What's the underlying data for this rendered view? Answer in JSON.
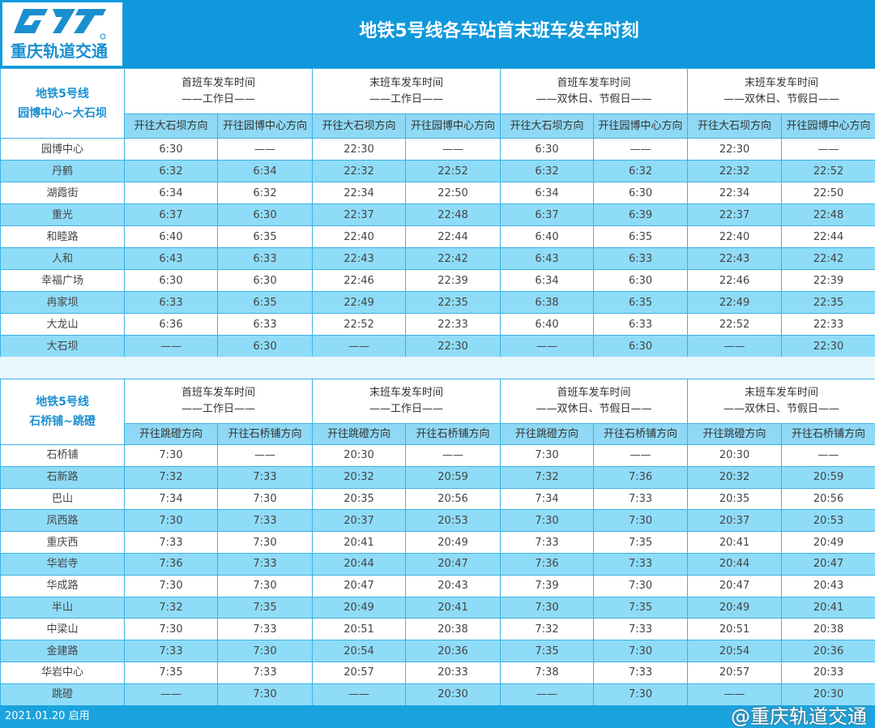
{
  "header": {
    "logo_text": "重庆轨道交通",
    "title": "地铁5号线各车站首末班车发车时刻"
  },
  "groups": [
    {
      "title": "首班车发车时间",
      "sub": "——工作日——"
    },
    {
      "title": "末班车发车时间",
      "sub": "——工作日——"
    },
    {
      "title": "首班车发车时间",
      "sub": "——双休日、节假日——"
    },
    {
      "title": "末班车发车时间",
      "sub": "——双休日、节假日——"
    }
  ],
  "sections": [
    {
      "line": "地铁5号线",
      "route": "园博中心~大石坝",
      "directions": [
        "开往大石坝方向",
        "开往园博中心方向"
      ],
      "rows": [
        [
          "园博中心",
          "6:30",
          "——",
          "22:30",
          "——",
          "6:30",
          "——",
          "22:30",
          "——"
        ],
        [
          "丹鹤",
          "6:32",
          "6:34",
          "22:32",
          "22:52",
          "6:32",
          "6:32",
          "22:32",
          "22:52"
        ],
        [
          "湖霞街",
          "6:34",
          "6:32",
          "22:34",
          "22:50",
          "6:34",
          "6:30",
          "22:34",
          "22:50"
        ],
        [
          "重光",
          "6:37",
          "6:30",
          "22:37",
          "22:48",
          "6:37",
          "6:39",
          "22:37",
          "22:48"
        ],
        [
          "和睦路",
          "6:40",
          "6:35",
          "22:40",
          "22:44",
          "6:40",
          "6:35",
          "22:40",
          "22:44"
        ],
        [
          "人和",
          "6:43",
          "6:33",
          "22:43",
          "22:42",
          "6:43",
          "6:33",
          "22:43",
          "22:42"
        ],
        [
          "幸福广场",
          "6:30",
          "6:30",
          "22:46",
          "22:39",
          "6:34",
          "6:30",
          "22:46",
          "22:39"
        ],
        [
          "冉家坝",
          "6:33",
          "6:35",
          "22:49",
          "22:35",
          "6:38",
          "6:35",
          "22:49",
          "22:35"
        ],
        [
          "大龙山",
          "6:36",
          "6:33",
          "22:52",
          "22:33",
          "6:40",
          "6:33",
          "22:52",
          "22:33"
        ],
        [
          "大石坝",
          "——",
          "6:30",
          "——",
          "22:30",
          "——",
          "6:30",
          "——",
          "22:30"
        ]
      ]
    },
    {
      "line": "地铁5号线",
      "route": "石桥铺~跳磴",
      "directions": [
        "开往跳磴方向",
        "开往石桥铺方向"
      ],
      "rows": [
        [
          "石桥铺",
          "7:30",
          "——",
          "20:30",
          "——",
          "7:30",
          "——",
          "20:30",
          "——"
        ],
        [
          "石新路",
          "7:32",
          "7:33",
          "20:32",
          "20:59",
          "7:32",
          "7:36",
          "20:32",
          "20:59"
        ],
        [
          "巴山",
          "7:34",
          "7:30",
          "20:35",
          "20:56",
          "7:34",
          "7:33",
          "20:35",
          "20:56"
        ],
        [
          "凤西路",
          "7:30",
          "7:33",
          "20:37",
          "20:53",
          "7:30",
          "7:30",
          "20:37",
          "20:53"
        ],
        [
          "重庆西",
          "7:33",
          "7:30",
          "20:41",
          "20:49",
          "7:33",
          "7:35",
          "20:41",
          "20:49"
        ],
        [
          "华岩寺",
          "7:36",
          "7:33",
          "20:44",
          "20:47",
          "7:36",
          "7:33",
          "20:44",
          "20:47"
        ],
        [
          "华成路",
          "7:30",
          "7:30",
          "20:47",
          "20:43",
          "7:39",
          "7:30",
          "20:47",
          "20:43"
        ],
        [
          "半山",
          "7:32",
          "7:35",
          "20:49",
          "20:41",
          "7:30",
          "7:35",
          "20:49",
          "20:41"
        ],
        [
          "中梁山",
          "7:30",
          "7:33",
          "20:51",
          "20:38",
          "7:32",
          "7:33",
          "20:51",
          "20:38"
        ],
        [
          "金建路",
          "7:33",
          "7:30",
          "20:54",
          "20:36",
          "7:35",
          "7:30",
          "20:54",
          "20:36"
        ],
        [
          "华岩中心",
          "7:35",
          "7:33",
          "20:57",
          "20:33",
          "7:38",
          "7:33",
          "20:57",
          "20:33"
        ],
        [
          "跳磴",
          "——",
          "7:30",
          "——",
          "20:30",
          "——",
          "7:30",
          "——",
          "20:30"
        ]
      ]
    }
  ],
  "footer": {
    "effective_date": "2021.01.20 启用",
    "watermark": "@重庆轨道交通"
  },
  "colors": {
    "brand_blue": "#0f98db",
    "row_alt": "#8fdcf8"
  }
}
